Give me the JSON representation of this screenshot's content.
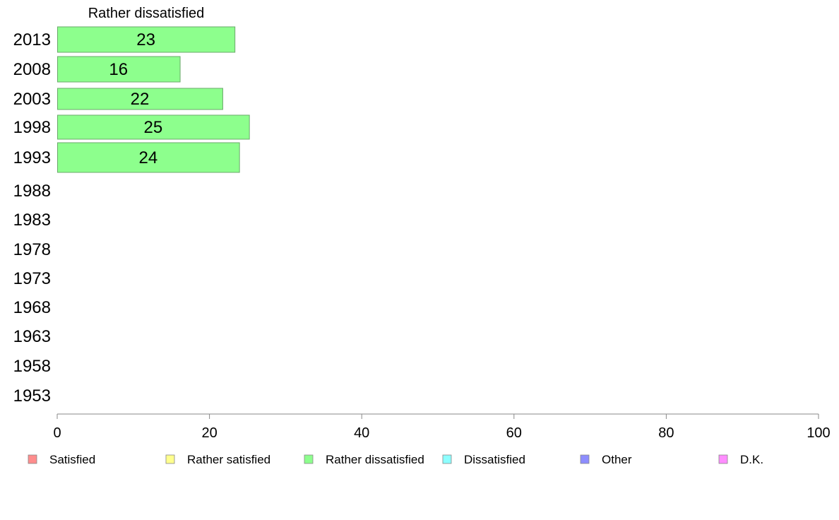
{
  "chart_data": {
    "type": "bar",
    "orientation": "horizontal",
    "title": "Rather dissatisfied",
    "categories": [
      "2013",
      "2008",
      "2003",
      "1998",
      "1993",
      "1988",
      "1983",
      "1978",
      "1973",
      "1968",
      "1963",
      "1958",
      "1953"
    ],
    "series": [
      {
        "name": "Rather dissatisfied",
        "values": [
          23.3,
          16.1,
          21.7,
          25.2,
          23.9,
          null,
          null,
          null,
          null,
          null,
          null,
          null,
          null
        ],
        "labels": [
          "23",
          "16",
          "22",
          "25",
          "24",
          "",
          "",
          "",
          "",
          "",
          "",
          "",
          ""
        ],
        "color": "#8dff8d"
      }
    ],
    "xlim": [
      0,
      100
    ],
    "xticks": [
      "0",
      "20",
      "40",
      "60",
      "80",
      "100"
    ],
    "grid": false,
    "legend": {
      "placement": "bottom",
      "entries": [
        {
          "label": "Satisfied",
          "color": "#ff8d8d"
        },
        {
          "label": "Rather satisfied",
          "color": "#ffff8d"
        },
        {
          "label": "Rather dissatisfied",
          "color": "#8dff8d"
        },
        {
          "label": "Dissatisfied",
          "color": "#8dffff"
        },
        {
          "label": "Other",
          "color": "#8d8dff"
        },
        {
          "label": "D.K.",
          "color": "#ff8dff"
        }
      ]
    }
  }
}
